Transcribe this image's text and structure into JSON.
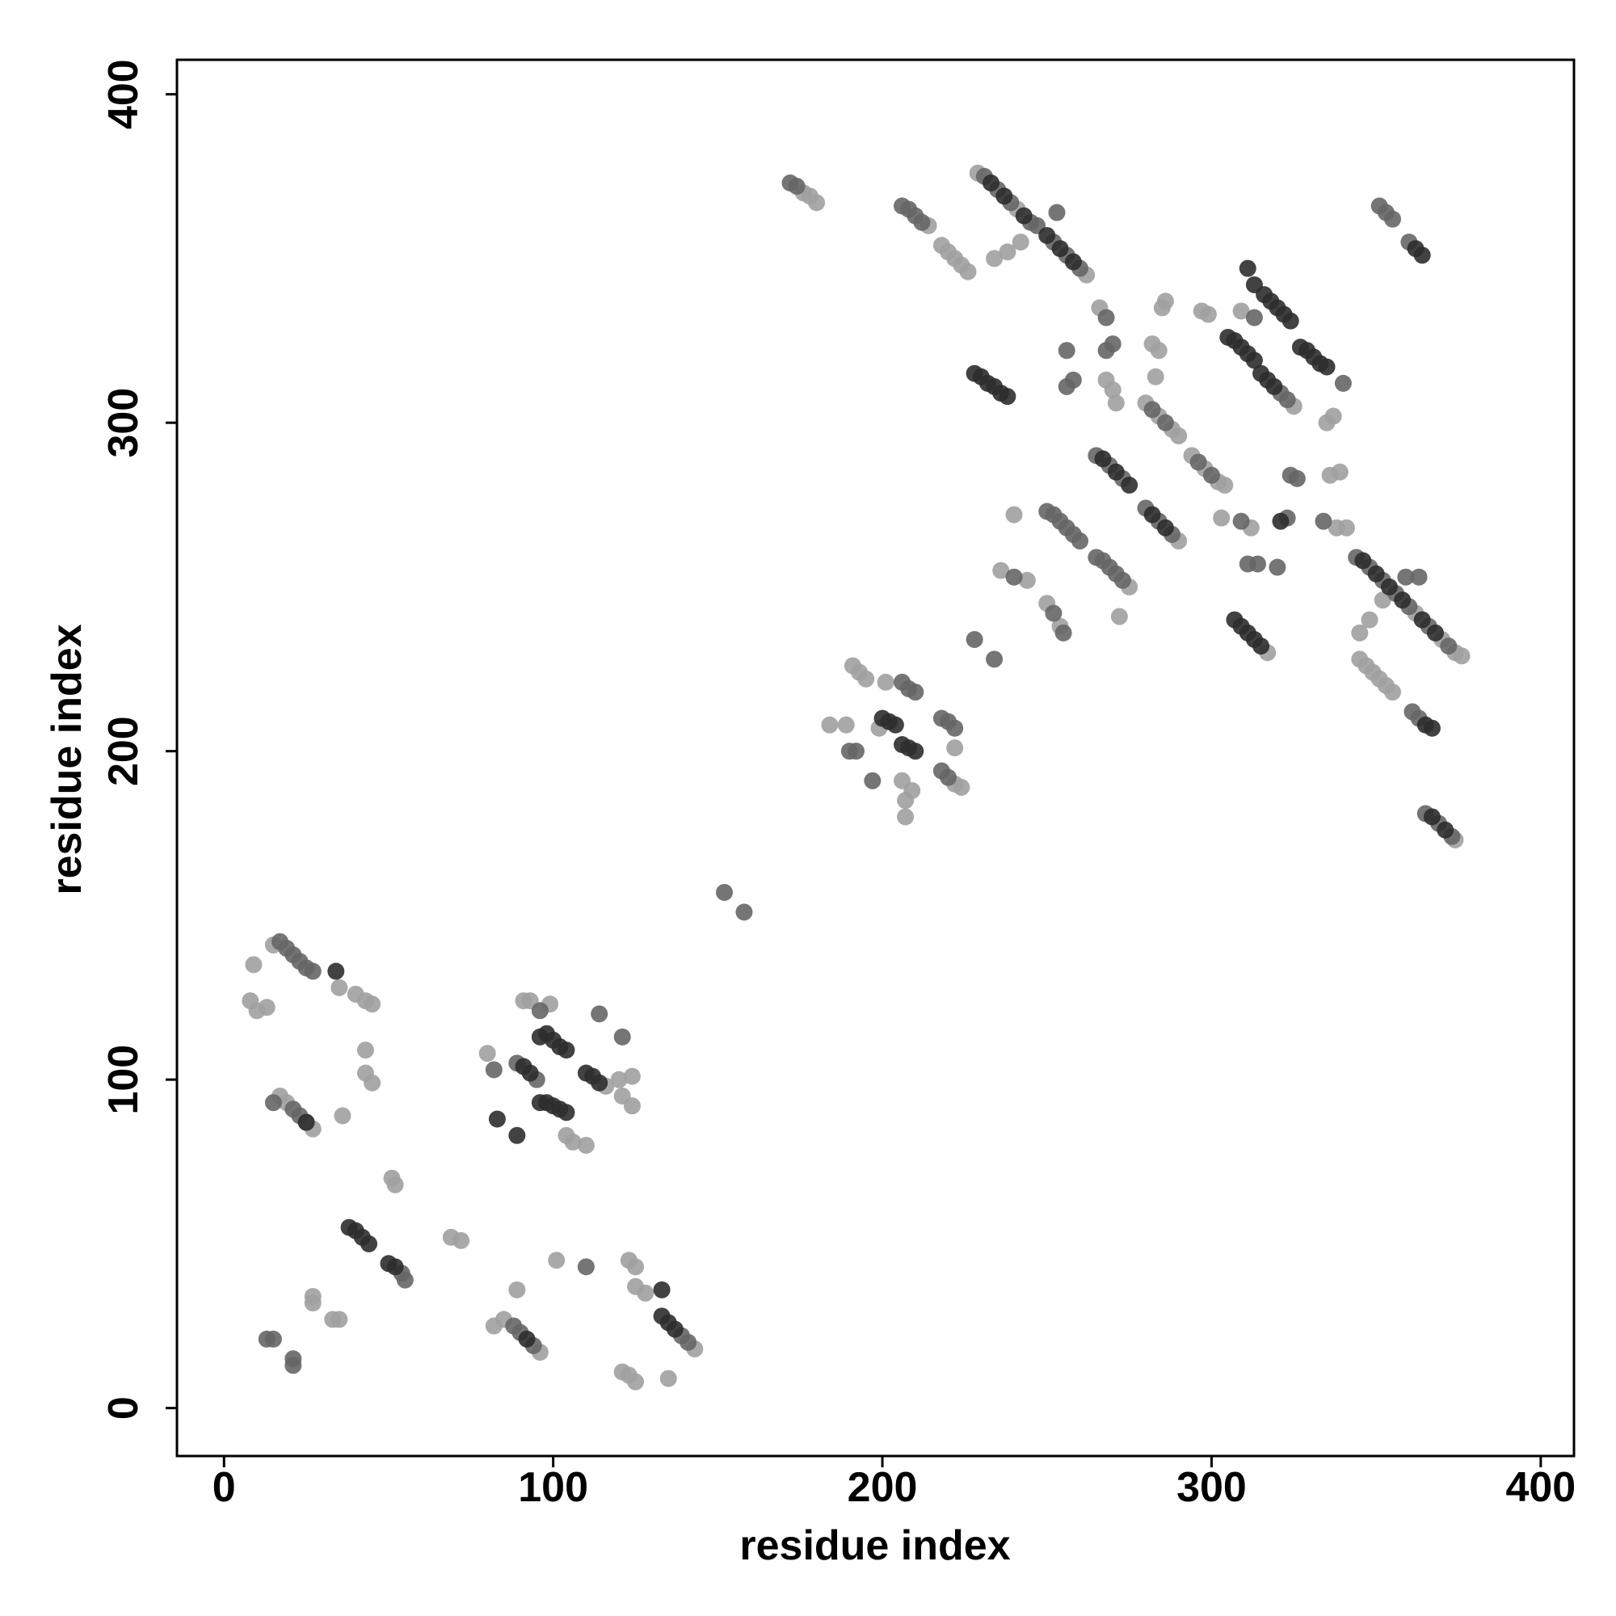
{
  "chart_data": {
    "type": "scatter",
    "x_label": "residue index",
    "y_label": "residue index",
    "xlim": [
      -14.3,
      410.1
    ],
    "ylim": [
      -14.6,
      410.5
    ],
    "xticks": [
      0,
      100,
      200,
      300,
      400
    ],
    "yticks": [
      0,
      100,
      200,
      300,
      400
    ],
    "series": [
      {
        "color": "#a0a0a0",
        "x": [
          35,
          40,
          43,
          45,
          9,
          8,
          10,
          13,
          36,
          43,
          43,
          45,
          51,
          52,
          69,
          72,
          27,
          27,
          33,
          35,
          80,
          91,
          93,
          99,
          104,
          106,
          120,
          124,
          121,
          124,
          110,
          82,
          85,
          89,
          101,
          123,
          125,
          125,
          128,
          121,
          123,
          125,
          135,
          27,
          25,
          176,
          178,
          180,
          184,
          189,
          191,
          193,
          195,
          201,
          199,
          206,
          209,
          207,
          207,
          222,
          222,
          224,
          218,
          220,
          222,
          224,
          226,
          214,
          234,
          238,
          242,
          240,
          236,
          244,
          250,
          254,
          266,
          268,
          270,
          271,
          272,
          275,
          280,
          284,
          288,
          290,
          285,
          286,
          282,
          284,
          283,
          294,
          298,
          302,
          297,
          299,
          303,
          312,
          309,
          337,
          335,
          336,
          339,
          338,
          341,
          352,
          348,
          345,
          345,
          347,
          349,
          351,
          353,
          355,
          362,
          370,
          374,
          376,
          229,
          241,
          262,
          290,
          304,
          317,
          325,
          15,
          19,
          17,
          143,
          96,
          116,
          374
        ],
        "y": [
          128,
          126,
          124,
          123,
          135,
          124,
          121,
          122,
          89,
          109,
          102,
          99,
          70,
          68,
          52,
          51,
          34,
          32,
          27,
          27,
          108,
          124,
          124,
          123,
          83,
          81,
          100,
          101,
          95,
          92,
          80,
          25,
          27,
          36,
          45,
          45,
          43,
          37,
          35,
          11,
          10,
          8,
          9,
          85,
          87,
          370,
          369,
          367,
          208,
          208,
          226,
          224,
          222,
          221,
          207,
          191,
          188,
          185,
          180,
          201,
          190,
          189,
          354,
          352,
          350,
          348,
          346,
          360,
          350,
          352,
          355,
          272,
          255,
          252,
          245,
          238,
          335,
          313,
          310,
          306,
          241,
          250,
          306,
          302,
          298,
          296,
          335,
          337,
          324,
          322,
          314,
          290,
          286,
          282,
          334,
          333,
          271,
          268,
          334,
          302,
          300,
          284,
          285,
          268,
          268,
          246,
          240,
          236,
          228,
          226,
          224,
          222,
          220,
          218,
          242,
          234,
          230,
          229,
          376,
          365,
          345,
          264,
          281,
          230,
          305,
          141,
          93,
          95,
          18,
          17,
          98,
          173
        ]
      },
      {
        "color": "#666666",
        "x": [
          17,
          19,
          21,
          25,
          27,
          15,
          21,
          23,
          13,
          15,
          21,
          21,
          54,
          55,
          82,
          89,
          95,
          96,
          114,
          121,
          110,
          88,
          94,
          90,
          139,
          141,
          152,
          158,
          172,
          174,
          190,
          192,
          197,
          206,
          208,
          210,
          218,
          220,
          222,
          218,
          220,
          206,
          208,
          210,
          212,
          231,
          235,
          239,
          245,
          247,
          252,
          256,
          260,
          253,
          228,
          234,
          240,
          252,
          255,
          250,
          252,
          254,
          256,
          258,
          260,
          256,
          258,
          256,
          268,
          268,
          270,
          265,
          269,
          273,
          265,
          267,
          269,
          271,
          273,
          282,
          286,
          280,
          284,
          288,
          296,
          300,
          309,
          313,
          324,
          326,
          323,
          311,
          314,
          320,
          340,
          334,
          344,
          348,
          352,
          356,
          360,
          366,
          372,
          359,
          363,
          361,
          363,
          351,
          353,
          355,
          360,
          365,
          369,
          373,
          323,
          321,
          23
        ],
        "y": [
          142,
          140,
          138,
          134,
          133,
          93,
          91,
          89,
          21,
          21,
          15,
          13,
          41,
          39,
          103,
          105,
          100,
          121,
          120,
          113,
          43,
          25,
          19,
          23,
          22,
          20,
          157,
          151,
          373,
          372,
          200,
          200,
          191,
          221,
          219,
          218,
          210,
          209,
          207,
          194,
          192,
          366,
          365,
          363,
          361,
          375,
          371,
          367,
          361,
          360,
          355,
          351,
          347,
          364,
          234,
          228,
          253,
          242,
          236,
          273,
          272,
          270,
          268,
          266,
          264,
          322,
          313,
          311,
          332,
          322,
          324,
          290,
          287,
          283,
          259,
          258,
          256,
          254,
          252,
          304,
          300,
          274,
          270,
          266,
          288,
          284,
          270,
          332,
          284,
          283,
          271,
          257,
          257,
          256,
          312,
          270,
          259,
          256,
          252,
          248,
          244,
          238,
          232,
          253,
          253,
          212,
          210,
          366,
          364,
          362,
          355,
          181,
          178,
          174,
          307,
          309,
          136
        ]
      },
      {
        "color": "#2e2e2e",
        "x": [
          34,
          38,
          40,
          42,
          44,
          50,
          52,
          83,
          89,
          91,
          93,
          96,
          98,
          100,
          102,
          104,
          96,
          98,
          100,
          102,
          104,
          110,
          112,
          114,
          92,
          133,
          133,
          135,
          137,
          200,
          202,
          204,
          206,
          208,
          210,
          233,
          237,
          243,
          250,
          254,
          258,
          228,
          230,
          232,
          234,
          236,
          238,
          267,
          271,
          275,
          282,
          286,
          305,
          307,
          309,
          311,
          313,
          311,
          313,
          316,
          318,
          320,
          322,
          324,
          315,
          317,
          319,
          321,
          327,
          329,
          331,
          333,
          335,
          307,
          309,
          311,
          313,
          315,
          346,
          350,
          354,
          358,
          364,
          368,
          365,
          367,
          362,
          364,
          367,
          371,
          25
        ],
        "y": [
          133,
          55,
          54,
          52,
          50,
          44,
          43,
          88,
          83,
          104,
          102,
          113,
          114,
          112,
          110,
          109,
          93,
          93,
          92,
          91,
          90,
          102,
          101,
          99,
          21,
          36,
          28,
          26,
          24,
          210,
          209,
          208,
          202,
          201,
          200,
          373,
          369,
          363,
          357,
          353,
          349,
          315,
          314,
          312,
          311,
          309,
          308,
          289,
          285,
          281,
          272,
          268,
          326,
          325,
          323,
          321,
          319,
          347,
          342,
          339,
          337,
          335,
          333,
          331,
          315,
          313,
          311,
          270,
          323,
          322,
          320,
          318,
          317,
          240,
          238,
          236,
          234,
          232,
          258,
          254,
          250,
          246,
          240,
          236,
          208,
          207,
          353,
          351,
          180,
          176,
          87
        ]
      }
    ]
  }
}
